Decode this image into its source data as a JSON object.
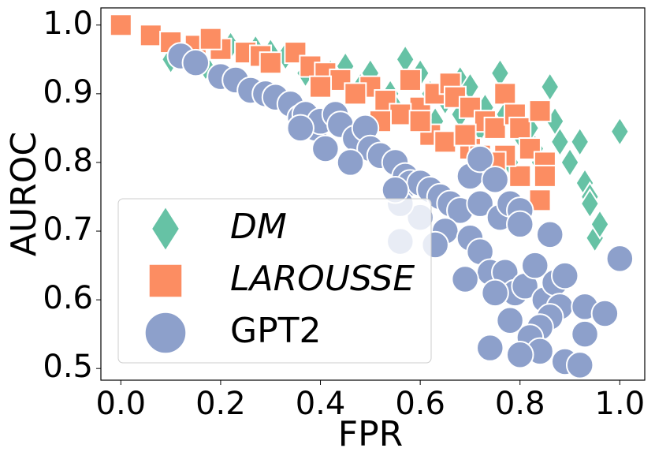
{
  "chart_data": {
    "type": "scatter",
    "xlabel": "FPR",
    "ylabel": "AUROC",
    "xlim": [
      -0.04,
      1.05
    ],
    "ylim": [
      0.483,
      1.025
    ],
    "xticks": [
      {
        "value": 0,
        "label": "0.0"
      },
      0.2,
      0.4,
      0.6,
      0.8,
      {
        "value": 1,
        "label": "1.0"
      }
    ],
    "yticks": [
      0.5,
      0.6,
      0.7,
      0.8,
      0.9,
      {
        "value": 1,
        "label": "1.0"
      }
    ],
    "legend": "lower left",
    "series": [
      {
        "name": "DM",
        "color": "#66c2a5",
        "marker": "diamond",
        "x": [
          0.1,
          0.17,
          0.27,
          0.3,
          0.33,
          0.42,
          0.45,
          0.5,
          0.54,
          0.6,
          0.62,
          0.68,
          0.7,
          0.73,
          0.76,
          0.77,
          0.79,
          0.8,
          0.82,
          0.84,
          0.86,
          0.87,
          0.88,
          0.9,
          0.92,
          0.93,
          0.94,
          0.94,
          0.95,
          0.96,
          1.0,
          0.4,
          0.37,
          0.48,
          0.55,
          0.65,
          0.72,
          0.83,
          0.85,
          0.78,
          0.57,
          0.22,
          0.14,
          0.63,
          0.68
        ],
        "values": [
          0.95,
          0.94,
          0.965,
          0.96,
          0.955,
          0.93,
          0.94,
          0.93,
          0.9,
          0.93,
          0.9,
          0.92,
          0.91,
          0.88,
          0.93,
          0.87,
          0.86,
          0.84,
          0.85,
          0.8,
          0.91,
          0.86,
          0.83,
          0.8,
          0.83,
          0.77,
          0.75,
          0.74,
          0.69,
          0.71,
          0.845,
          0.92,
          0.93,
          0.91,
          0.88,
          0.89,
          0.85,
          0.82,
          0.79,
          0.8,
          0.95,
          0.97,
          0.955,
          0.86,
          0.87
        ]
      },
      {
        "name": "LAROUSSE",
        "color": "#fc8d62",
        "marker": "square",
        "x": [
          0.0,
          0.06,
          0.1,
          0.15,
          0.2,
          0.25,
          0.28,
          0.35,
          0.38,
          0.41,
          0.44,
          0.5,
          0.53,
          0.58,
          0.6,
          0.63,
          0.66,
          0.67,
          0.7,
          0.73,
          0.75,
          0.77,
          0.79,
          0.8,
          0.82,
          0.84,
          0.85,
          0.85,
          0.8,
          0.84,
          0.56,
          0.62,
          0.65,
          0.7,
          0.72,
          0.77,
          0.4,
          0.47,
          0.3,
          0.18,
          0.52,
          0.6,
          0.69,
          0.75
        ],
        "values": [
          1.0,
          0.985,
          0.975,
          0.97,
          0.965,
          0.96,
          0.955,
          0.96,
          0.94,
          0.93,
          0.92,
          0.91,
          0.89,
          0.92,
          0.88,
          0.9,
          0.915,
          0.895,
          0.88,
          0.86,
          0.85,
          0.9,
          0.87,
          0.85,
          0.82,
          0.875,
          0.8,
          0.78,
          0.78,
          0.745,
          0.87,
          0.84,
          0.83,
          0.82,
          0.81,
          0.81,
          0.91,
          0.9,
          0.945,
          0.98,
          0.86,
          0.86,
          0.84,
          0.8
        ]
      },
      {
        "name": "GPT2",
        "color": "#8da0cb",
        "marker": "circle",
        "x": [
          0.12,
          0.15,
          0.2,
          0.23,
          0.26,
          0.29,
          0.31,
          0.34,
          0.36,
          0.37,
          0.39,
          0.4,
          0.43,
          0.44,
          0.47,
          0.49,
          0.5,
          0.52,
          0.55,
          0.57,
          0.58,
          0.6,
          0.62,
          0.64,
          0.66,
          0.68,
          0.7,
          0.72,
          0.72,
          0.75,
          0.76,
          0.78,
          0.8,
          0.8,
          0.6,
          0.65,
          0.7,
          0.72,
          0.74,
          0.77,
          0.79,
          0.81,
          0.83,
          0.85,
          0.86,
          0.87,
          0.89,
          0.88,
          0.86,
          0.84,
          0.82,
          0.84,
          0.8,
          0.78,
          0.75,
          0.69,
          0.74,
          0.89,
          0.92,
          0.93,
          0.93,
          0.97,
          1.0,
          0.56,
          0.56,
          0.46,
          0.41,
          0.36,
          0.55,
          0.63
        ],
        "values": [
          0.955,
          0.945,
          0.925,
          0.92,
          0.905,
          0.9,
          0.895,
          0.885,
          0.865,
          0.87,
          0.85,
          0.86,
          0.87,
          0.855,
          0.835,
          0.85,
          0.82,
          0.81,
          0.8,
          0.78,
          0.77,
          0.77,
          0.76,
          0.75,
          0.74,
          0.73,
          0.78,
          0.805,
          0.74,
          0.775,
          0.72,
          0.74,
          0.73,
          0.71,
          0.72,
          0.7,
          0.69,
          0.67,
          0.64,
          0.64,
          0.61,
          0.62,
          0.65,
          0.6,
          0.695,
          0.625,
          0.635,
          0.59,
          0.575,
          0.56,
          0.545,
          0.525,
          0.52,
          0.57,
          0.61,
          0.63,
          0.53,
          0.51,
          0.505,
          0.55,
          0.59,
          0.58,
          0.66,
          0.685,
          0.74,
          0.8,
          0.82,
          0.85,
          0.76,
          0.68
        ]
      }
    ]
  }
}
